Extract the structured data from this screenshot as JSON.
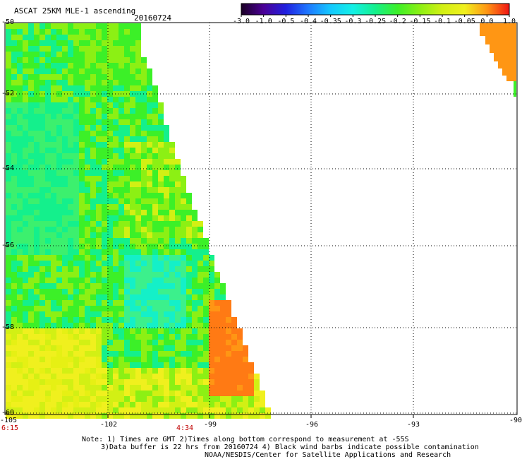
{
  "title": {
    "product": "ASCAT 25KM MLE-1 ascending",
    "date": "20160724"
  },
  "colorbar": {
    "tick_labels": [
      "-3.0",
      "-1.0",
      "-0.5",
      "-0.4",
      "-0.35",
      "-0.3",
      "-0.25",
      "-0.2",
      "-0.15",
      "-0.1",
      "-0.05",
      "0.0",
      "1.0"
    ],
    "colors": [
      "#1a0024",
      "#4b0096",
      "#2020e0",
      "#1e78ff",
      "#14c8ff",
      "#14f0e6",
      "#14f08c",
      "#3cf028",
      "#8cf014",
      "#d2f014",
      "#f0f01e",
      "#ff9614",
      "#f01414"
    ]
  },
  "map": {
    "lat_labels": [
      "-50",
      "-52",
      "-54",
      "-56",
      "-58",
      "-60"
    ],
    "lon_labels": [
      "-105",
      "-102",
      "-99",
      "-96",
      "-93",
      "-90"
    ],
    "lon_range": [
      -105,
      -90
    ],
    "lat_range": [
      -60,
      -50
    ]
  },
  "times": {
    "left": "6:15",
    "middle": "4:34"
  },
  "notes": {
    "line1": "Note: 1) Times are GMT 2)Times along bottom correspond to measurement at -55S",
    "line2": "3)Data buffer is 22 hrs from 20160724 4) Black wind barbs indicate possible contamination",
    "line3": "NOAA/NESDIS/Center for Satellite Applications and Research"
  }
}
